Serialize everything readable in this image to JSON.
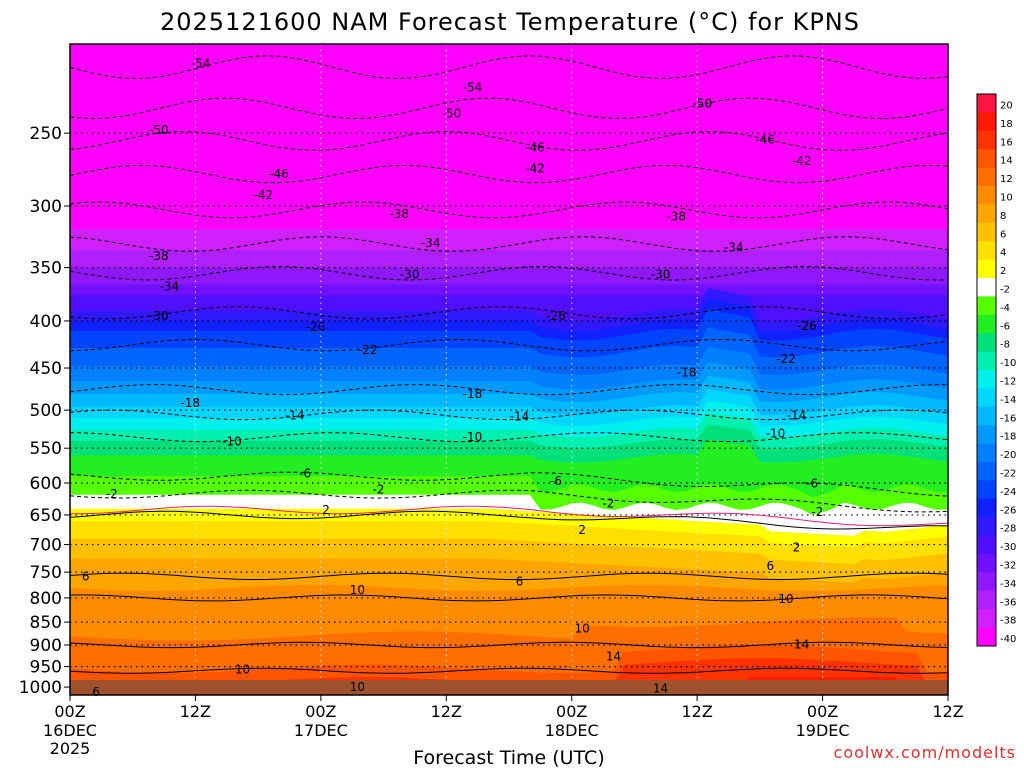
{
  "chart_data": {
    "type": "heatmap",
    "title": "2025121600 NAM Forecast Temperature (°C) for KPNS",
    "xlabel": "Forecast Time (UTC)",
    "ylabel": "",
    "credit": "coolwx.com/modelts",
    "y_ticks": [
      250,
      300,
      350,
      400,
      450,
      500,
      550,
      600,
      650,
      700,
      750,
      800,
      850,
      900,
      950,
      1000
    ],
    "y_range_hPa": [
      200,
      1020
    ],
    "x_range_hours": [
      0,
      84
    ],
    "x_ticks": [
      {
        "hour": 0,
        "line1": "00Z",
        "line2": "16DEC",
        "line3": "2025"
      },
      {
        "hour": 12,
        "line1": "12Z",
        "line2": "",
        "line3": ""
      },
      {
        "hour": 24,
        "line1": "00Z",
        "line2": "17DEC",
        "line3": ""
      },
      {
        "hour": 36,
        "line1": "12Z",
        "line2": "",
        "line3": ""
      },
      {
        "hour": 48,
        "line1": "00Z",
        "line2": "18DEC",
        "line3": ""
      },
      {
        "hour": 60,
        "line1": "12Z",
        "line2": "",
        "line3": ""
      },
      {
        "hour": 72,
        "line1": "00Z",
        "line2": "19DEC",
        "line3": ""
      },
      {
        "hour": 84,
        "line1": "12Z",
        "line2": "",
        "line3": ""
      }
    ],
    "colorbar": {
      "levels": [
        20,
        18,
        16,
        14,
        12,
        10,
        8,
        6,
        4,
        2,
        -2,
        -4,
        -6,
        -8,
        -10,
        -12,
        -14,
        -16,
        -18,
        -20,
        -22,
        -24,
        -26,
        -28,
        -30,
        -32,
        -34,
        -36,
        -38,
        -40
      ],
      "colors": [
        "#ff1744",
        "#ff1a00",
        "#ff3300",
        "#ff5500",
        "#ff6f00",
        "#ff8c00",
        "#ffa500",
        "#ffc000",
        "#ffe000",
        "#ffff00",
        "#ffffff",
        "#55ff00",
        "#22ee22",
        "#00e07a",
        "#00f0b0",
        "#00f0f0",
        "#00d6ff",
        "#00b8ff",
        "#009aff",
        "#0080ff",
        "#0064ff",
        "#0044ff",
        "#1020ff",
        "#3018ff",
        "#5010ff",
        "#7010ff",
        "#9018ff",
        "#b020ff",
        "#d020ff",
        "#ff00ff"
      ]
    },
    "isotherm_labels": [
      {
        "value": "-54",
        "hour": 12.5,
        "hPa": 210
      },
      {
        "value": "-54",
        "hour": 38.5,
        "hPa": 223
      },
      {
        "value": "-50",
        "hour": 8.5,
        "hPa": 248
      },
      {
        "value": "-50",
        "hour": 36.5,
        "hPa": 238
      },
      {
        "value": "-50",
        "hour": 60.5,
        "hPa": 232
      },
      {
        "value": "-46",
        "hour": 20,
        "hPa": 277
      },
      {
        "value": "-46",
        "hour": 44.5,
        "hPa": 259
      },
      {
        "value": "-46",
        "hour": 66.5,
        "hPa": 254
      },
      {
        "value": "-42",
        "hour": 18.5,
        "hPa": 292
      },
      {
        "value": "-42",
        "hour": 44.5,
        "hPa": 273
      },
      {
        "value": "-42",
        "hour": 70,
        "hPa": 268
      },
      {
        "value": "-38",
        "hour": 8.5,
        "hPa": 340
      },
      {
        "value": "-38",
        "hour": 31.5,
        "hPa": 306
      },
      {
        "value": "-38",
        "hour": 58,
        "hPa": 308
      },
      {
        "value": "-34",
        "hour": 9.5,
        "hPa": 367
      },
      {
        "value": "-34",
        "hour": 34.5,
        "hPa": 329
      },
      {
        "value": "-34",
        "hour": 63.5,
        "hPa": 333
      },
      {
        "value": "-30",
        "hour": 8.5,
        "hPa": 395
      },
      {
        "value": "-30",
        "hour": 32.5,
        "hPa": 356
      },
      {
        "value": "-30",
        "hour": 56.5,
        "hPa": 356
      },
      {
        "value": "-26",
        "hour": 23.5,
        "hPa": 406
      },
      {
        "value": "-26",
        "hour": 46.5,
        "hPa": 395
      },
      {
        "value": "-26",
        "hour": 70.5,
        "hPa": 405
      },
      {
        "value": "-22",
        "hour": 28.5,
        "hPa": 430
      },
      {
        "value": "-22",
        "hour": 68.5,
        "hPa": 440
      },
      {
        "value": "-18",
        "hour": 11.5,
        "hPa": 491
      },
      {
        "value": "-18",
        "hour": 38.5,
        "hPa": 480
      },
      {
        "value": "-18",
        "hour": 59,
        "hPa": 455
      },
      {
        "value": "-14",
        "hour": 21.5,
        "hPa": 507
      },
      {
        "value": "-14",
        "hour": 43,
        "hPa": 508
      },
      {
        "value": "-14",
        "hour": 69.5,
        "hPa": 507
      },
      {
        "value": "-10",
        "hour": 15.5,
        "hPa": 541
      },
      {
        "value": "-10",
        "hour": 38.5,
        "hPa": 535
      },
      {
        "value": "-10",
        "hour": 67.5,
        "hPa": 530
      },
      {
        "value": "-6",
        "hour": 22.5,
        "hPa": 586
      },
      {
        "value": "-6",
        "hour": 46.5,
        "hPa": 597
      },
      {
        "value": "-6",
        "hour": 71,
        "hPa": 601
      },
      {
        "value": "-2",
        "hour": 4,
        "hPa": 617
      },
      {
        "value": "-2",
        "hour": 29.5,
        "hPa": 610
      },
      {
        "value": "-2",
        "hour": 51.5,
        "hPa": 632
      },
      {
        "value": "-2",
        "hour": 71.5,
        "hPa": 645
      },
      {
        "value": "2",
        "hour": 24.5,
        "hPa": 642
      },
      {
        "value": "2",
        "hour": 49,
        "hPa": 675
      },
      {
        "value": "2",
        "hour": 69.5,
        "hPa": 705
      },
      {
        "value": "6",
        "hour": 1.5,
        "hPa": 758
      },
      {
        "value": "6",
        "hour": 43,
        "hPa": 768
      },
      {
        "value": "6",
        "hour": 67,
        "hPa": 739
      },
      {
        "value": "10",
        "hour": 27.5,
        "hPa": 784
      },
      {
        "value": "10",
        "hour": 49,
        "hPa": 864
      },
      {
        "value": "10",
        "hour": 68.5,
        "hPa": 802
      },
      {
        "value": "10",
        "hour": 16.5,
        "hPa": 957
      },
      {
        "value": "10",
        "hour": 27.5,
        "hPa": 1000
      },
      {
        "value": "14",
        "hour": 52,
        "hPa": 926
      },
      {
        "value": "14",
        "hour": 70,
        "hPa": 899
      },
      {
        "value": "14",
        "hour": 56.5,
        "hPa": 1004
      },
      {
        "value": "6",
        "hour": 2.5,
        "hPa": 1012
      }
    ]
  }
}
